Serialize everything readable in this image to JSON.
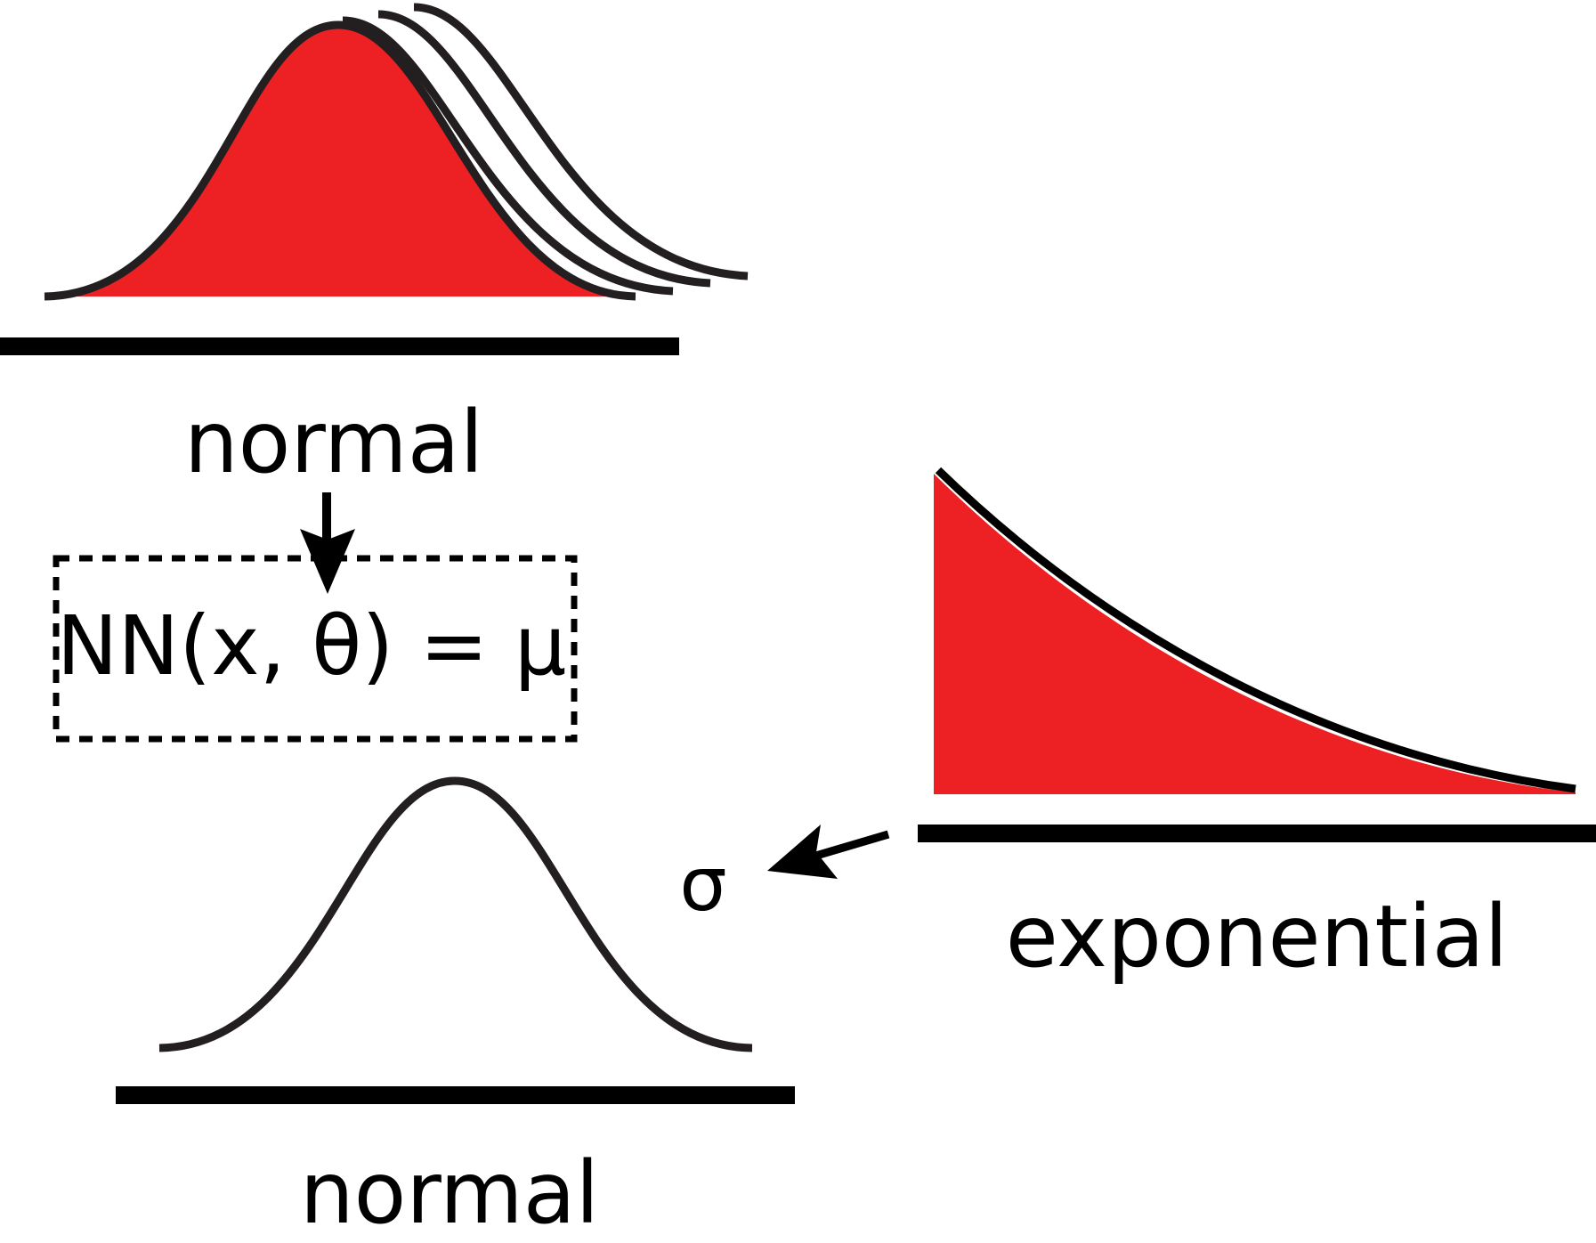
{
  "colors": {
    "fill": "#ed2024",
    "stroke": "#231f20",
    "axis": "#000000",
    "background": "#ffffff"
  },
  "labels": {
    "top_distribution": "normal",
    "formula": "NN(x, θ) = μ",
    "right_distribution": "exponential",
    "sigma": "σ",
    "bottom_distribution": "normal"
  }
}
